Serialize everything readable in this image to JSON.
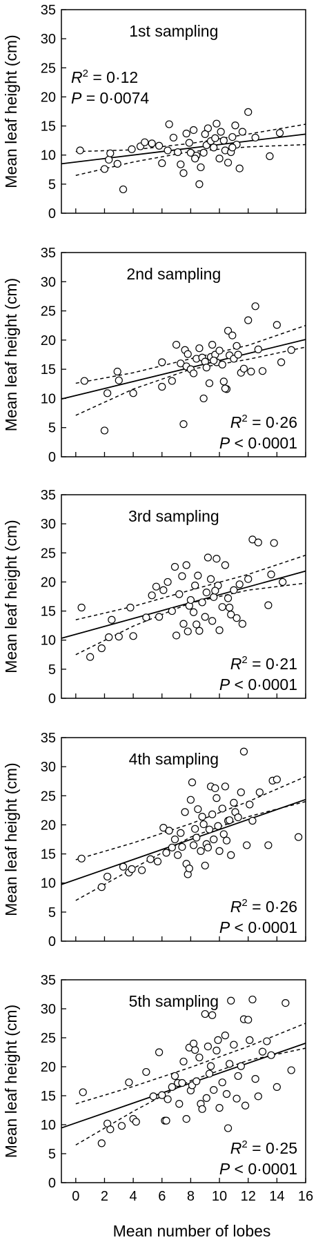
{
  "figure": {
    "ylabel": "Mean leaf height (cm)",
    "xlabel": "Mean number of lobes",
    "x_ticks": [
      "0",
      "2",
      "4",
      "6",
      "8",
      "10",
      "12",
      "14",
      "16"
    ],
    "y_ticks": [
      "0",
      "5",
      "10",
      "15",
      "20",
      "25",
      "30",
      "35"
    ]
  },
  "chart_data": [
    {
      "type": "scatter",
      "title": "1st sampling",
      "xlim": [
        -1,
        16
      ],
      "ylim": [
        0,
        35
      ],
      "stat_r2": "= 0·12",
      "stat_p": "= 0·0074",
      "stats_position": "top-left",
      "fit": {
        "intercept": 8.8,
        "slope": 0.3
      },
      "ci_upper": [
        [
          0,
          10.6
        ],
        [
          4,
          10.9
        ],
        [
          8,
          12.0
        ],
        [
          12,
          13.6
        ],
        [
          16,
          15.3
        ]
      ],
      "ci_lower": [
        [
          0,
          6.5
        ],
        [
          4,
          8.8
        ],
        [
          8,
          10.6
        ],
        [
          12,
          11.4
        ],
        [
          16,
          11.8
        ]
      ],
      "points": [
        [
          0.3,
          10.8
        ],
        [
          2.0,
          7.6
        ],
        [
          2.3,
          9.2
        ],
        [
          2.4,
          10.3
        ],
        [
          2.9,
          8.5
        ],
        [
          3.3,
          4.1
        ],
        [
          3.9,
          11.0
        ],
        [
          4.5,
          11.5
        ],
        [
          4.8,
          12.2
        ],
        [
          5.3,
          12.0
        ],
        [
          5.8,
          11.6
        ],
        [
          6.0,
          8.6
        ],
        [
          6.4,
          10.8
        ],
        [
          6.5,
          15.3
        ],
        [
          6.8,
          13.0
        ],
        [
          7.1,
          10.5
        ],
        [
          7.3,
          8.4
        ],
        [
          7.5,
          6.9
        ],
        [
          7.7,
          13.7
        ],
        [
          7.9,
          12.1
        ],
        [
          8.0,
          10.4
        ],
        [
          8.2,
          14.3
        ],
        [
          8.4,
          9.9
        ],
        [
          8.6,
          5.0
        ],
        [
          8.7,
          7.9
        ],
        [
          8.9,
          10.4
        ],
        [
          9.1,
          11.7
        ],
        [
          9.2,
          14.6
        ],
        [
          9.4,
          12.4
        ],
        [
          9.6,
          11.3
        ],
        [
          9.8,
          15.4
        ],
        [
          10.0,
          9.4
        ],
        [
          10.1,
          14.0
        ],
        [
          10.3,
          12.5
        ],
        [
          10.4,
          10.8
        ],
        [
          10.6,
          8.7
        ],
        [
          10.8,
          10.5
        ],
        [
          10.9,
          13.1
        ],
        [
          11.1,
          15.1
        ],
        [
          11.2,
          11.8
        ],
        [
          11.4,
          7.7
        ],
        [
          11.6,
          14.0
        ],
        [
          12.0,
          17.4
        ],
        [
          12.5,
          13.0
        ],
        [
          13.5,
          9.8
        ],
        [
          14.2,
          13.8
        ],
        [
          9.0,
          13.6
        ],
        [
          10.9,
          11.3
        ],
        [
          8.3,
          9.4
        ],
        [
          9.7,
          12.9
        ]
      ]
    },
    {
      "type": "scatter",
      "title": "2nd sampling",
      "xlim": [
        -1,
        16
      ],
      "ylim": [
        0,
        35
      ],
      "stat_r2": "= 0·26",
      "stat_p": "< 0·0001",
      "stats_position": "bottom-right",
      "fit": {
        "intercept": 10.5,
        "slope": 0.6
      },
      "ci_upper": [
        [
          0,
          12.6
        ],
        [
          4,
          14.4
        ],
        [
          8,
          16.8
        ],
        [
          12,
          19.1
        ],
        [
          16,
          22.5
        ]
      ],
      "ci_lower": [
        [
          0,
          7.1
        ],
        [
          4,
          11.6
        ],
        [
          8,
          15.0
        ],
        [
          12,
          16.7
        ],
        [
          16,
          18.8
        ]
      ],
      "points": [
        [
          0.6,
          13.0
        ],
        [
          2.0,
          4.5
        ],
        [
          2.2,
          10.9
        ],
        [
          2.9,
          14.6
        ],
        [
          3.0,
          13.1
        ],
        [
          4.0,
          10.9
        ],
        [
          6.0,
          12.0
        ],
        [
          6.0,
          16.2
        ],
        [
          6.7,
          13.0
        ],
        [
          7.0,
          19.2
        ],
        [
          7.3,
          16.0
        ],
        [
          7.5,
          5.6
        ],
        [
          7.6,
          18.3
        ],
        [
          7.7,
          15.5
        ],
        [
          7.8,
          17.6
        ],
        [
          8.0,
          15.0
        ],
        [
          8.2,
          14.3
        ],
        [
          8.4,
          16.8
        ],
        [
          8.6,
          18.6
        ],
        [
          8.8,
          17.0
        ],
        [
          8.9,
          10.0
        ],
        [
          9.0,
          16.3
        ],
        [
          9.1,
          15.3
        ],
        [
          9.3,
          12.6
        ],
        [
          9.4,
          17.1
        ],
        [
          9.5,
          19.2
        ],
        [
          9.7,
          17.5
        ],
        [
          9.8,
          16.2
        ],
        [
          10.0,
          18.2
        ],
        [
          10.2,
          15.8
        ],
        [
          10.3,
          12.9
        ],
        [
          10.5,
          11.6
        ],
        [
          10.6,
          21.6
        ],
        [
          10.7,
          17.4
        ],
        [
          10.9,
          20.8
        ],
        [
          11.0,
          16.8
        ],
        [
          11.2,
          19.0
        ],
        [
          11.3,
          17.5
        ],
        [
          11.5,
          14.4
        ],
        [
          11.7,
          15.1
        ],
        [
          12.0,
          23.4
        ],
        [
          12.2,
          14.6
        ],
        [
          12.5,
          25.8
        ],
        [
          12.7,
          18.4
        ],
        [
          13.0,
          14.7
        ],
        [
          14.0,
          22.6
        ],
        [
          14.3,
          16.2
        ],
        [
          15.0,
          18.3
        ],
        [
          10.4,
          11.7
        ],
        [
          9.6,
          16.5
        ]
      ]
    },
    {
      "type": "scatter",
      "title": "3rd sampling",
      "xlim": [
        -1,
        16
      ],
      "ylim": [
        0,
        35
      ],
      "stat_r2": "= 0·21",
      "stat_p": "< 0·0001",
      "stats_position": "bottom-right",
      "fit": {
        "intercept": 11.0,
        "slope": 0.68
      },
      "ci_upper": [
        [
          0,
          13.5
        ],
        [
          4,
          15.8
        ],
        [
          8,
          18.6
        ],
        [
          12,
          21.3
        ],
        [
          16,
          24.6
        ]
      ],
      "ci_lower": [
        [
          0,
          7.5
        ],
        [
          4,
          12.4
        ],
        [
          8,
          16.4
        ],
        [
          12,
          18.6
        ],
        [
          16,
          19.8
        ]
      ],
      "points": [
        [
          0.4,
          15.6
        ],
        [
          1.0,
          7.1
        ],
        [
          1.8,
          8.6
        ],
        [
          2.3,
          10.5
        ],
        [
          2.5,
          13.5
        ],
        [
          3.0,
          10.6
        ],
        [
          3.8,
          15.6
        ],
        [
          4.0,
          10.7
        ],
        [
          4.9,
          13.9
        ],
        [
          5.3,
          17.7
        ],
        [
          5.6,
          19.2
        ],
        [
          5.8,
          14.0
        ],
        [
          6.1,
          18.6
        ],
        [
          6.4,
          20.0
        ],
        [
          6.7,
          15.0
        ],
        [
          6.9,
          22.6
        ],
        [
          7.0,
          10.8
        ],
        [
          7.2,
          17.9
        ],
        [
          7.4,
          21.0
        ],
        [
          7.5,
          12.8
        ],
        [
          7.7,
          22.9
        ],
        [
          7.8,
          11.5
        ],
        [
          7.9,
          15.9
        ],
        [
          8.0,
          16.9
        ],
        [
          8.2,
          14.8
        ],
        [
          8.3,
          19.4
        ],
        [
          8.5,
          21.1
        ],
        [
          8.6,
          11.6
        ],
        [
          8.8,
          16.5
        ],
        [
          9.0,
          14.0
        ],
        [
          9.1,
          18.2
        ],
        [
          9.2,
          24.2
        ],
        [
          9.4,
          20.5
        ],
        [
          9.5,
          13.3
        ],
        [
          9.6,
          17.4
        ],
        [
          9.8,
          24.0
        ],
        [
          9.9,
          19.4
        ],
        [
          10.0,
          11.7
        ],
        [
          10.2,
          15.7
        ],
        [
          10.4,
          22.9
        ],
        [
          10.6,
          17.2
        ],
        [
          10.8,
          14.4
        ],
        [
          11.0,
          18.6
        ],
        [
          11.2,
          13.8
        ],
        [
          11.4,
          19.6
        ],
        [
          11.6,
          12.8
        ],
        [
          12.0,
          20.5
        ],
        [
          12.3,
          27.3
        ],
        [
          12.7,
          26.8
        ],
        [
          13.4,
          16.0
        ],
        [
          13.6,
          21.3
        ],
        [
          13.8,
          26.7
        ],
        [
          14.4,
          20.0
        ],
        [
          9.7,
          18.5
        ],
        [
          8.4,
          12.7
        ],
        [
          10.7,
          15.6
        ]
      ]
    },
    {
      "type": "scatter",
      "title": "4th sampling",
      "xlim": [
        -1,
        16
      ],
      "ylim": [
        0,
        35
      ],
      "stat_r2": "= 0·26",
      "stat_p": "< 0·0001",
      "stats_position": "bottom-right",
      "fit": {
        "intercept": 10.6,
        "slope": 0.86
      },
      "ci_upper": [
        [
          0,
          14.0
        ],
        [
          4,
          16.9
        ],
        [
          8,
          20.2
        ],
        [
          12,
          24.0
        ],
        [
          16,
          28.3
        ]
      ],
      "ci_lower": [
        [
          0,
          7.0
        ],
        [
          4,
          12.5
        ],
        [
          8,
          17.9
        ],
        [
          12,
          21.4
        ],
        [
          16,
          24.0
        ]
      ],
      "points": [
        [
          0.4,
          14.2
        ],
        [
          1.8,
          9.3
        ],
        [
          2.2,
          11.1
        ],
        [
          3.3,
          12.8
        ],
        [
          3.7,
          11.8
        ],
        [
          3.9,
          12.4
        ],
        [
          4.6,
          12.2
        ],
        [
          5.2,
          14.1
        ],
        [
          5.7,
          13.7
        ],
        [
          6.1,
          19.5
        ],
        [
          6.3,
          15.2
        ],
        [
          6.5,
          19.0
        ],
        [
          6.7,
          16.1
        ],
        [
          6.9,
          17.5
        ],
        [
          7.1,
          14.8
        ],
        [
          7.3,
          18.6
        ],
        [
          7.4,
          16.2
        ],
        [
          7.6,
          22.2
        ],
        [
          7.7,
          13.3
        ],
        [
          7.8,
          11.5
        ],
        [
          7.9,
          12.5
        ],
        [
          8.0,
          24.3
        ],
        [
          8.1,
          27.3
        ],
        [
          8.2,
          16.5
        ],
        [
          8.3,
          19.3
        ],
        [
          8.4,
          17.8
        ],
        [
          8.5,
          22.7
        ],
        [
          8.7,
          15.5
        ],
        [
          8.8,
          21.4
        ],
        [
          8.9,
          20.1
        ],
        [
          9.0,
          13.0
        ],
        [
          9.1,
          16.7
        ],
        [
          9.3,
          19.2
        ],
        [
          9.4,
          26.6
        ],
        [
          9.5,
          21.8
        ],
        [
          9.6,
          17.5
        ],
        [
          9.7,
          26.3
        ],
        [
          9.8,
          24.6
        ],
        [
          9.9,
          19.8
        ],
        [
          10.0,
          15.5
        ],
        [
          10.2,
          22.8
        ],
        [
          10.3,
          18.4
        ],
        [
          10.4,
          26.6
        ],
        [
          10.5,
          17.3
        ],
        [
          10.6,
          20.7
        ],
        [
          10.8,
          14.8
        ],
        [
          11.0,
          23.8
        ],
        [
          11.1,
          22.2
        ],
        [
          11.3,
          21.3
        ],
        [
          11.5,
          25.6
        ],
        [
          11.7,
          32.6
        ],
        [
          11.9,
          16.5
        ],
        [
          12.1,
          23.5
        ],
        [
          12.3,
          20.7
        ],
        [
          12.8,
          25.6
        ],
        [
          13.4,
          16.5
        ],
        [
          13.7,
          27.6
        ],
        [
          14.0,
          27.8
        ],
        [
          15.5,
          17.9
        ],
        [
          10.7,
          20.8
        ],
        [
          9.2,
          16.1
        ]
      ]
    },
    {
      "type": "scatter",
      "title": "5th sampling",
      "xlim": [
        -1,
        16
      ],
      "ylim": [
        0,
        35
      ],
      "stat_r2": "= 0·25",
      "stat_p": "< 0·0001",
      "stats_position": "bottom-right",
      "fit": {
        "intercept": 10.3,
        "slope": 0.86
      },
      "ci_upper": [
        [
          0,
          13.6
        ],
        [
          4,
          16.6
        ],
        [
          8,
          19.9
        ],
        [
          12,
          23.5
        ],
        [
          16,
          27.5
        ]
      ],
      "ci_lower": [
        [
          0,
          6.5
        ],
        [
          4,
          12.3
        ],
        [
          8,
          17.6
        ],
        [
          12,
          21.1
        ],
        [
          16,
          23.2
        ]
      ],
      "points": [
        [
          0.5,
          15.6
        ],
        [
          1.8,
          6.8
        ],
        [
          2.2,
          10.2
        ],
        [
          2.4,
          9.2
        ],
        [
          3.2,
          9.8
        ],
        [
          3.7,
          17.3
        ],
        [
          4.0,
          11.0
        ],
        [
          4.2,
          10.5
        ],
        [
          4.9,
          19.1
        ],
        [
          5.4,
          14.9
        ],
        [
          5.8,
          22.5
        ],
        [
          6.0,
          15.1
        ],
        [
          6.2,
          10.7
        ],
        [
          6.3,
          10.7
        ],
        [
          6.4,
          14.4
        ],
        [
          6.7,
          16.5
        ],
        [
          6.9,
          18.4
        ],
        [
          7.1,
          17.2
        ],
        [
          7.2,
          13.6
        ],
        [
          7.4,
          17.2
        ],
        [
          7.5,
          20.9
        ],
        [
          7.7,
          11.0
        ],
        [
          7.9,
          23.3
        ],
        [
          8.0,
          15.9
        ],
        [
          8.1,
          16.8
        ],
        [
          8.3,
          22.9
        ],
        [
          8.4,
          17.5
        ],
        [
          8.6,
          21.6
        ],
        [
          8.7,
          13.6
        ],
        [
          8.8,
          12.7
        ],
        [
          9.0,
          29.1
        ],
        [
          9.1,
          14.6
        ],
        [
          9.2,
          23.5
        ],
        [
          9.4,
          20.1
        ],
        [
          9.5,
          28.9
        ],
        [
          9.6,
          16.0
        ],
        [
          9.8,
          22.8
        ],
        [
          9.9,
          24.6
        ],
        [
          10.0,
          12.9
        ],
        [
          10.2,
          17.3
        ],
        [
          10.4,
          25.4
        ],
        [
          10.5,
          15.3
        ],
        [
          10.7,
          20.5
        ],
        [
          10.8,
          31.4
        ],
        [
          11.0,
          23.8
        ],
        [
          11.2,
          14.5
        ],
        [
          11.3,
          18.4
        ],
        [
          11.5,
          20.1
        ],
        [
          11.7,
          28.2
        ],
        [
          11.8,
          13.3
        ],
        [
          12.0,
          28.1
        ],
        [
          12.3,
          31.6
        ],
        [
          12.5,
          17.9
        ],
        [
          12.7,
          14.9
        ],
        [
          13.0,
          22.6
        ],
        [
          13.3,
          24.4
        ],
        [
          13.6,
          22.0
        ],
        [
          14.0,
          16.5
        ],
        [
          14.6,
          31.0
        ],
        [
          15.0,
          19.4
        ],
        [
          10.6,
          9.4
        ],
        [
          9.3,
          18.8
        ],
        [
          8.2,
          24.0
        ],
        [
          12.1,
          24.6
        ]
      ]
    }
  ]
}
